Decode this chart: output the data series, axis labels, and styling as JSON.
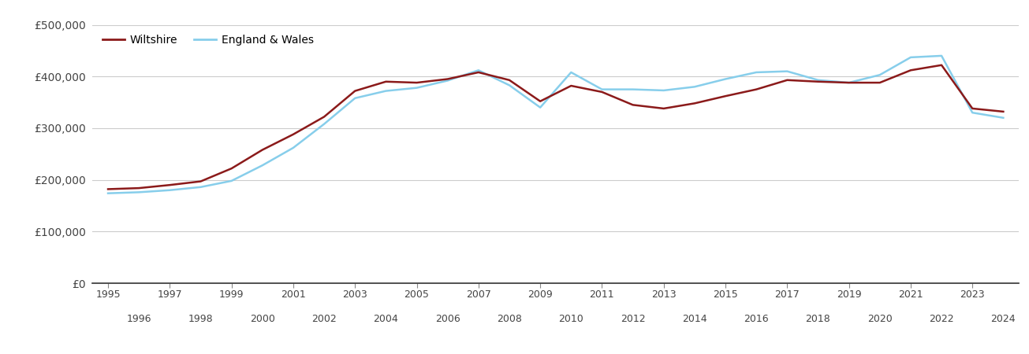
{
  "years": [
    1995,
    1996,
    1997,
    1998,
    1999,
    2000,
    2001,
    2002,
    2003,
    2004,
    2005,
    2006,
    2007,
    2008,
    2009,
    2010,
    2011,
    2012,
    2013,
    2014,
    2015,
    2016,
    2017,
    2018,
    2019,
    2020,
    2021,
    2022,
    2023,
    2024
  ],
  "wiltshire": [
    182000,
    184000,
    190000,
    197000,
    222000,
    258000,
    288000,
    322000,
    372000,
    390000,
    388000,
    395000,
    408000,
    393000,
    352000,
    382000,
    370000,
    345000,
    338000,
    348000,
    362000,
    375000,
    393000,
    390000,
    388000,
    388000,
    412000,
    422000,
    338000,
    332000
  ],
  "england_wales": [
    174000,
    176000,
    180000,
    186000,
    198000,
    228000,
    262000,
    308000,
    358000,
    372000,
    378000,
    392000,
    412000,
    383000,
    340000,
    408000,
    375000,
    375000,
    373000,
    380000,
    395000,
    408000,
    410000,
    393000,
    388000,
    403000,
    437000,
    440000,
    330000,
    320000
  ],
  "wiltshire_color": "#8B1A1A",
  "england_wales_color": "#87CEEB",
  "wiltshire_label": "Wiltshire",
  "england_wales_label": "England & Wales",
  "ylim": [
    0,
    500000
  ],
  "yticks": [
    0,
    100000,
    200000,
    300000,
    400000,
    500000
  ],
  "ytick_labels": [
    "£0",
    "£100,000",
    "£200,000",
    "£300,000",
    "£400,000",
    "£500,000"
  ],
  "line_width": 1.8,
  "background_color": "#ffffff",
  "grid_color": "#cccccc"
}
